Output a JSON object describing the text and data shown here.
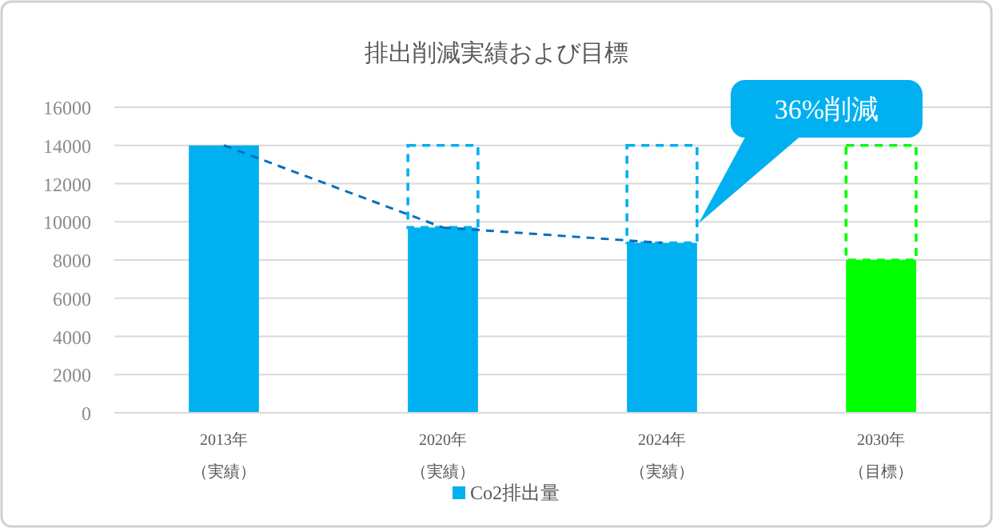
{
  "chart_data": {
    "type": "bar",
    "title": "排出削減実績および目標",
    "categories": [
      "2013年（実績）",
      "2020年（実績）",
      "2024年（実績）",
      "2030年（目標）"
    ],
    "stacked": true,
    "series": [
      {
        "name": "Co2排出量",
        "color": "#00b0f0",
        "colors": [
          "#00b0f0",
          "#00b0f0",
          "#00b0f0",
          "#00ff00"
        ],
        "values": [
          14000,
          9700,
          8900,
          8000
        ]
      },
      {
        "colors": [
          "#00b0f0",
          "#00b0f0",
          "#00b0f0",
          "#00ff00"
        ],
        "values": [
          null,
          4300,
          5100,
          6000
        ],
        "line_style": "dashed"
      },
      {
        "type": "line",
        "color": "#0070c0",
        "values": [
          14000,
          9700,
          8900,
          null
        ],
        "line_style": "dashed"
      }
    ],
    "ylim": [
      0,
      16000
    ],
    "yticks": [
      0,
      2000,
      4000,
      6000,
      8000,
      10000,
      12000,
      14000,
      16000
    ],
    "grid": "y",
    "legend": "bottom",
    "annotations": [
      "36%削減"
    ]
  }
}
